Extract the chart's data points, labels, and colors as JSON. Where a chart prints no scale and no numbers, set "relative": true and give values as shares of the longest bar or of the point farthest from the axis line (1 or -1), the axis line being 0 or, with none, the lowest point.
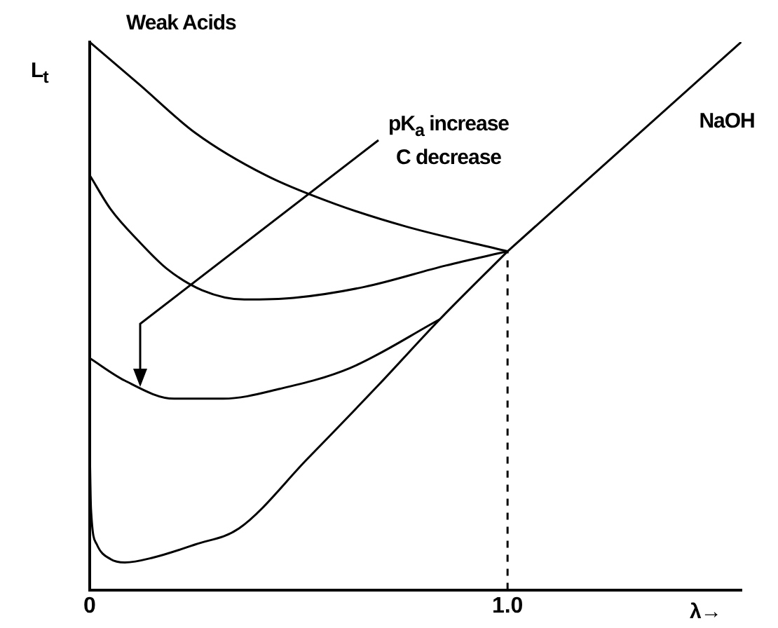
{
  "chart_data": {
    "type": "line",
    "title": "Weak Acids",
    "ylabel": "L$_{t}$",
    "xlabel": "λ→",
    "relative": true,
    "xlim": [
      0,
      1.56
    ],
    "xticks": [
      0,
      {
        "value": 1,
        "label": "1.0"
      }
    ],
    "grid": false,
    "legend": false,
    "marker": "none",
    "line_style": "solid",
    "annotations": [
      "pK$_{a}$ increase",
      "C decrease"
    ],
    "ref_lines": [
      {
        "axis": "x",
        "value": 1,
        "line_style": "dashed",
        "color": "#000000"
      }
    ],
    "series": [
      {
        "color": "#000000",
        "x": [
          0,
          0.118,
          0.253,
          0.421,
          0.589,
          0.758,
          1.0
        ],
        "values": [
          1.0,
          0.923,
          0.834,
          0.757,
          0.704,
          0.663,
          0.618
        ]
      },
      {
        "color": "#000000",
        "x": [
          0,
          0.05,
          0.118,
          0.185,
          0.269,
          0.37,
          0.488,
          0.657,
          0.852,
          1.0
        ],
        "values": [
          0.757,
          0.695,
          0.636,
          0.586,
          0.547,
          0.53,
          0.533,
          0.553,
          0.592,
          0.618
        ]
      },
      {
        "color": "#000000",
        "x": [
          0,
          0.084,
          0.202,
          0.32,
          0.455,
          0.623,
          0.838
        ],
        "values": [
          0.423,
          0.382,
          0.349,
          0.349,
          0.367,
          0.405,
          0.494
        ]
      },
      {
        "color": "#000000",
        "x": [
          0,
          0.003,
          0.017,
          0.05,
          0.084,
          0.152,
          0.253,
          0.357,
          0.522,
          0.69,
          0.838,
          1.0
        ],
        "values": [
          0.263,
          0.148,
          0.083,
          0.056,
          0.05,
          0.059,
          0.083,
          0.112,
          0.24,
          0.373,
          0.494,
          0.618
        ]
      },
      {
        "name": "NaOH",
        "color": "#000000",
        "x": [
          1.0,
          1.559
        ],
        "values": [
          0.618,
          1.0
        ]
      }
    ]
  }
}
